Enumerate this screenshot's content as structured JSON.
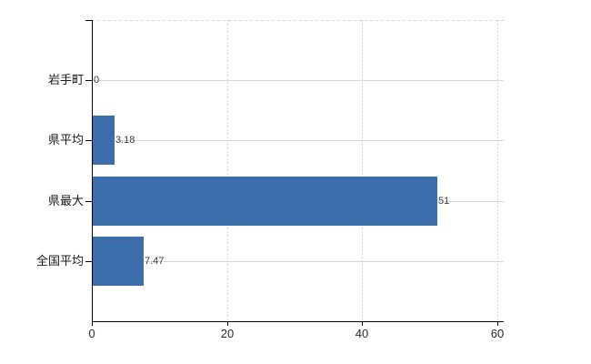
{
  "chart_data": {
    "type": "bar",
    "orientation": "horizontal",
    "title": "",
    "xlabel": "",
    "ylabel": "",
    "categories": [
      "岩手町",
      "県平均",
      "県最大",
      "全国平均"
    ],
    "values": [
      0,
      3.18,
      51,
      7.47
    ],
    "data_labels": [
      "0",
      "3.18",
      "51",
      "7.47"
    ],
    "x_ticks": [
      0,
      20,
      40,
      60
    ],
    "x_tick_labels": [
      "0",
      "20",
      "40",
      "60"
    ],
    "xlim": [
      0,
      61
    ],
    "grid": "on",
    "legend_position": "none",
    "colors": {
      "bar": "#3d6eac",
      "axis": "#000000",
      "horizontal_gridline": "#d6dbd2",
      "vertical_gridline": "#d2d2da",
      "top_border": "#d0d0d0",
      "category_text": "#1a1a1a",
      "value_text": "#3a3a3a",
      "background": "#ffffff"
    }
  }
}
